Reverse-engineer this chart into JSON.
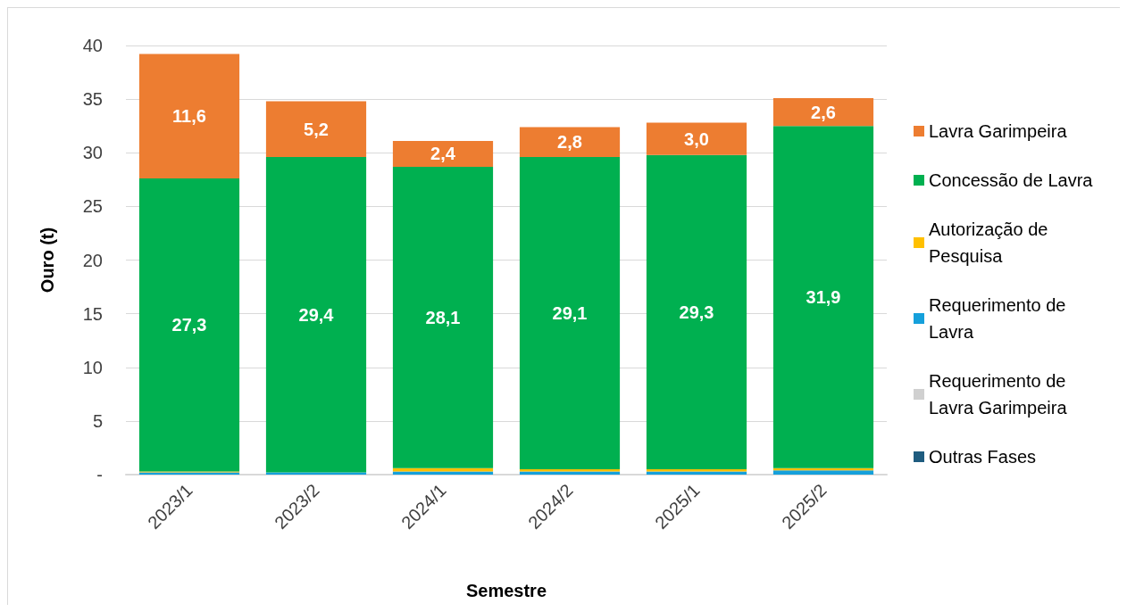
{
  "chart_data": {
    "type": "bar",
    "stacked": true,
    "xlabel": "Semestre",
    "ylabel": "Ouro (t)",
    "categories": [
      "2023/1",
      "2023/2",
      "2024/1",
      "2024/2",
      "2025/1",
      "2025/2"
    ],
    "series": [
      {
        "name": "Outras Fases",
        "color": "#1f5c7f",
        "values": [
          null,
          null,
          null,
          null,
          null,
          null
        ]
      },
      {
        "name": "Requerimento de Lavra Garimpeira",
        "color": "#d0d0d0",
        "values": [
          null,
          null,
          null,
          null,
          null,
          null
        ]
      },
      {
        "name": "Requerimento de Lavra",
        "color": "#15a0db",
        "values": [
          0.2,
          0.2,
          0.3,
          0.3,
          0.3,
          0.4
        ]
      },
      {
        "name": "Autorização de Pesquisa",
        "color": "#ffc000",
        "values": [
          0.1,
          null,
          0.3,
          0.2,
          0.2,
          0.2
        ]
      },
      {
        "name": "Concessão de Lavra",
        "color": "#00b050",
        "values": [
          27.3,
          29.4,
          28.1,
          29.1,
          29.3,
          31.9
        ],
        "value_labels": [
          "27,3",
          "29,4",
          "28,1",
          "29,1",
          "29,3",
          "31,9"
        ]
      },
      {
        "name": "Lavra Garimpeira",
        "color": "#ed7d31",
        "values": [
          11.6,
          5.2,
          2.4,
          2.8,
          3.0,
          2.6
        ],
        "value_labels": [
          "11,6",
          "5,2",
          "2,4",
          "2,8",
          "3,0",
          "2,6"
        ]
      }
    ],
    "ylim": [
      0,
      40
    ],
    "yticks": [
      {
        "value": 0,
        "label": "-"
      },
      5,
      10,
      15,
      20,
      25,
      30,
      35,
      40
    ],
    "grid": "y",
    "legend": "right"
  }
}
